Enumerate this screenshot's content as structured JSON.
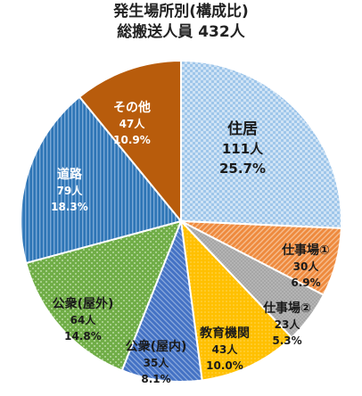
{
  "chart_data": {
    "type": "pie",
    "title_lines": [
      "発生場所別(構成比)",
      "総搬送人員 432人"
    ],
    "slices": [
      {
        "name": "住居",
        "count": "111人",
        "percent": "25.7%",
        "value": 25.7
      },
      {
        "name": "仕事場①",
        "count": "30人",
        "percent": "6.9%",
        "value": 6.9
      },
      {
        "name": "仕事場②",
        "count": "23人",
        "percent": "5.3%",
        "value": 5.3
      },
      {
        "name": "教育機関",
        "count": "43人",
        "percent": "10.0%",
        "value": 10.0
      },
      {
        "name": "公衆(屋内)",
        "count": "35人",
        "percent": "8.1%",
        "value": 8.1
      },
      {
        "name": "公衆(屋外)",
        "count": "64人",
        "percent": "14.8%",
        "value": 14.8
      },
      {
        "name": "道路",
        "count": "79人",
        "percent": "18.3%",
        "value": 18.3
      },
      {
        "name": "その他",
        "count": "47人",
        "percent": "10.9%",
        "value": 10.9
      }
    ],
    "colors": [
      "#9fc6ea",
      "#ee8a3e",
      "#a6a6a6",
      "#ffc000",
      "#4472c4",
      "#70ad47",
      "#2e75b6",
      "#b85c0c"
    ],
    "label_colors": [
      "#1a1a1a",
      "#1a1a1a",
      "#1a1a1a",
      "#1a1a1a",
      "#1a1a1a",
      "#1a1a1a",
      "#ffffff",
      "#ffffff"
    ]
  }
}
